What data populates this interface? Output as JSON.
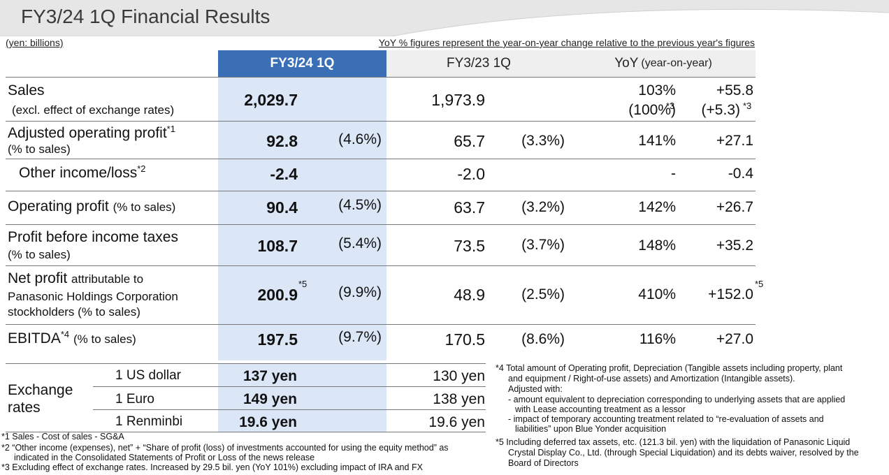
{
  "header": {
    "title": "FY3/24 1Q Financial Results",
    "unit_note": "(yen: billions)",
    "yoy_note": "YoY % figures represent the year-on-year change relative to the previous year's figures"
  },
  "columns": {
    "current": "FY3/24 1Q",
    "previous": "FY3/23 1Q",
    "yoy_main": "YoY",
    "yoy_sub": "(year-on-year)"
  },
  "rows": {
    "sales": {
      "label": "Sales",
      "sub": "(excl. effect of exchange rates)",
      "current": "2,029.7",
      "previous": "1,973.9",
      "yoy_pct": "103%",
      "yoy_diff": "+55.8",
      "yoy_pct_excl": "(100%)",
      "yoy_diff_excl": "(+5.3)",
      "mark": "*3"
    },
    "adjusted_op": {
      "label": "Adjusted operating profit",
      "mark": "*1",
      "sub": "(% to sales)",
      "current": "92.8",
      "current_ratio": "(4.6%)",
      "previous": "65.7",
      "previous_ratio": "(3.3%)",
      "yoy_pct": "141%",
      "yoy_diff": "+27.1"
    },
    "other_income": {
      "label": "Other income/loss",
      "mark": "*2",
      "current": "-2.4",
      "previous": "-2.0",
      "yoy_pct": "-",
      "yoy_diff": "-0.4"
    },
    "operating_profit": {
      "label": "Operating profit",
      "sub": "(% to sales)",
      "current": "90.4",
      "current_ratio": "(4.5%)",
      "previous": "63.7",
      "previous_ratio": "(3.2%)",
      "yoy_pct": "142%",
      "yoy_diff": "+26.7"
    },
    "pbt": {
      "label": "Profit before income taxes",
      "sub": "(% to sales)",
      "current": "108.7",
      "current_ratio": "(5.4%)",
      "previous": "73.5",
      "previous_ratio": "(3.7%)",
      "yoy_pct": "148%",
      "yoy_diff": "+35.2"
    },
    "net_profit": {
      "label": "Net profit",
      "label_small": "attributable to",
      "line2": "Panasonic Holdings Corporation",
      "line3": "stockholders (% to sales)",
      "mark": "*5",
      "current": "200.9",
      "current_ratio": "(9.9%)",
      "previous": "48.9",
      "previous_ratio": "(2.5%)",
      "yoy_pct": "410%",
      "yoy_diff": "+152.0"
    },
    "ebitda": {
      "label": "EBITDA",
      "mark": "*4",
      "sub": "(% to sales)",
      "current": "197.5",
      "current_ratio": "(9.7%)",
      "previous": "170.5",
      "previous_ratio": "(8.6%)",
      "yoy_pct": "116%",
      "yoy_diff": "+27.0"
    }
  },
  "exchange": {
    "label_1": "Exchange",
    "label_2": "rates",
    "usd": {
      "label": "1 US dollar",
      "current": "137 yen",
      "previous": "130 yen"
    },
    "eur": {
      "label": "1 Euro",
      "current": "149 yen",
      "previous": "138 yen"
    },
    "rmb": {
      "label": "1 Renminbi",
      "current": "19.6 yen",
      "previous": "19.6 yen"
    }
  },
  "notes": {
    "n1": "*1 Sales - Cost of sales - SG&A",
    "n2a": "*2 “Other income (expenses), net” + “Share of profit (loss) of investments accounted for using the equity method” as",
    "n2b": "indicated in the Consolidated Statements of Profit or Loss of the news release",
    "n3": "*3  Excluding effect of exchange rates. Increased by 29.5 bil. yen (YoY 101%) excluding impact of IRA and FX",
    "n4a": "*4 Total amount of Operating profit, Depreciation (Tangible assets including property, plant",
    "n4b": "and equipment / Right-of-use assets) and Amortization (Intangible assets).",
    "n4c": "Adjusted with:",
    "n4d": "- amount equivalent to depreciation corresponding to underlying assets that are applied",
    "n4e": "with Lease accounting treatment as a lessor",
    "n4f": "- impact of  temporary accounting treatment related to “re-evaluation of assets and",
    "n4g": "liabilities” upon Blue Yonder acquisition",
    "n5a": "*5  Including deferred tax assets, etc. (121.3 bil. yen) with the liquidation of Panasonic Liquid",
    "n5b": "Crystal Display Co., Ltd. (through Special Liquidation) and its debts waiver, resolved by the",
    "n5c": "Board of Directors"
  }
}
